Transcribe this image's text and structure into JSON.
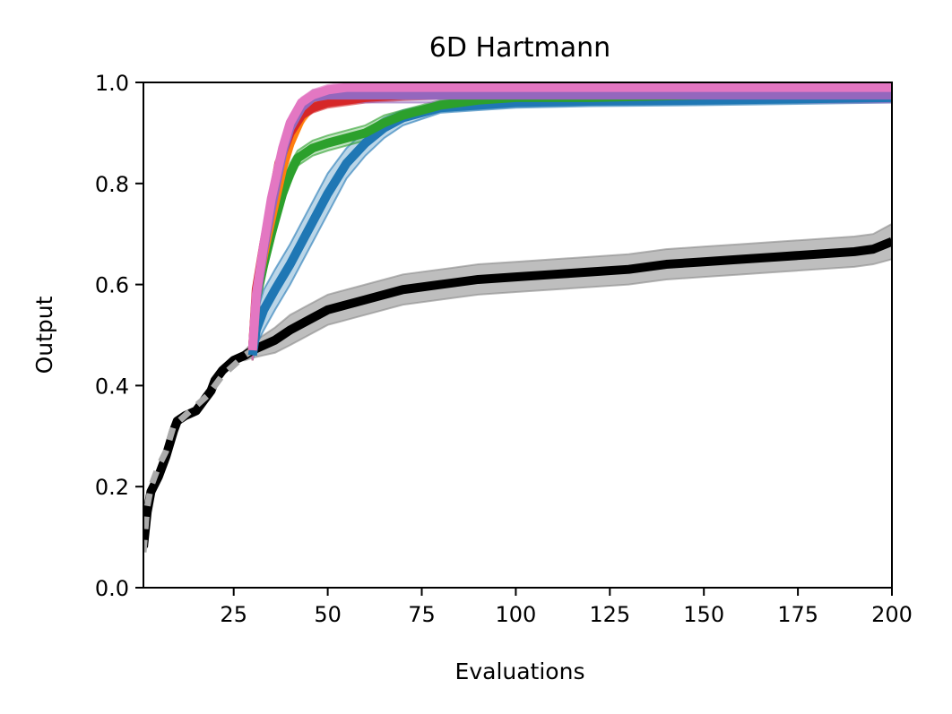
{
  "chart_data": {
    "type": "line",
    "title": "6D Hartmann",
    "xlabel": "Evaluations",
    "ylabel": "Output",
    "xlim": [
      1,
      200
    ],
    "ylim": [
      0.0,
      1.0
    ],
    "x_ticks": [
      25,
      50,
      75,
      100,
      125,
      150,
      175,
      200
    ],
    "x_tick_labels": [
      "25",
      "50",
      "75",
      "100",
      "125",
      "150",
      "175",
      "200"
    ],
    "y_ticks": [
      0.0,
      0.2,
      0.4,
      0.6,
      0.8,
      1.0
    ],
    "y_tick_labels": [
      "0.0",
      "0.2",
      "0.4",
      "0.6",
      "0.8",
      "1.0"
    ],
    "grid": false,
    "legend": "none",
    "series": [
      {
        "color": "#000000",
        "band_color": "#888888",
        "style": "solid",
        "x": [
          1,
          2,
          3,
          5,
          7,
          9,
          10,
          12,
          15,
          17,
          19,
          20,
          22,
          25,
          28,
          30,
          33,
          36,
          40,
          45,
          50,
          55,
          60,
          70,
          80,
          90,
          100,
          110,
          120,
          130,
          140,
          150,
          160,
          170,
          180,
          190,
          195,
          200
        ],
        "y": [
          0.08,
          0.15,
          0.19,
          0.22,
          0.26,
          0.31,
          0.33,
          0.34,
          0.35,
          0.37,
          0.39,
          0.41,
          0.43,
          0.45,
          0.46,
          0.47,
          0.48,
          0.49,
          0.51,
          0.53,
          0.55,
          0.56,
          0.57,
          0.59,
          0.6,
          0.61,
          0.615,
          0.62,
          0.625,
          0.63,
          0.64,
          0.645,
          0.65,
          0.655,
          0.66,
          0.665,
          0.67,
          0.685
        ],
        "band": [
          0,
          0,
          0,
          0,
          0,
          0,
          0,
          0,
          0,
          0,
          0,
          0,
          0,
          0,
          0.01,
          0.015,
          0.02,
          0.025,
          0.03,
          0.03,
          0.03,
          0.03,
          0.03,
          0.03,
          0.03,
          0.03,
          0.03,
          0.03,
          0.03,
          0.03,
          0.03,
          0.03,
          0.03,
          0.03,
          0.03,
          0.03,
          0.03,
          0.035
        ]
      },
      {
        "color": "#aaaaaa",
        "style": "dashed",
        "x": [
          1,
          2,
          3,
          5,
          7,
          9,
          12,
          15,
          18,
          20,
          22,
          25,
          28,
          30
        ],
        "y": [
          0.07,
          0.16,
          0.2,
          0.24,
          0.27,
          0.32,
          0.34,
          0.36,
          0.38,
          0.4,
          0.42,
          0.44,
          0.46,
          0.47
        ]
      },
      {
        "color": "#1f77b4",
        "style": "solid",
        "x": [
          30,
          31,
          33,
          36,
          40,
          45,
          50,
          55,
          60,
          65,
          70,
          80,
          90,
          100,
          120,
          150,
          200
        ],
        "y": [
          0.46,
          0.51,
          0.55,
          0.59,
          0.64,
          0.71,
          0.78,
          0.84,
          0.88,
          0.91,
          0.93,
          0.95,
          0.955,
          0.96,
          0.963,
          0.965,
          0.97
        ],
        "band": [
          0.01,
          0.03,
          0.04,
          0.04,
          0.04,
          0.04,
          0.04,
          0.03,
          0.025,
          0.02,
          0.015,
          0.01,
          0.01,
          0.01,
          0.01,
          0.01,
          0.01
        ]
      },
      {
        "color": "#2ca02c",
        "style": "solid",
        "x": [
          30,
          31,
          33,
          35,
          38,
          40,
          42,
          44,
          46,
          50,
          55,
          60,
          65,
          70,
          75,
          80,
          90,
          100,
          120,
          150,
          200
        ],
        "y": [
          0.47,
          0.57,
          0.64,
          0.7,
          0.78,
          0.82,
          0.85,
          0.86,
          0.87,
          0.88,
          0.89,
          0.9,
          0.92,
          0.935,
          0.945,
          0.955,
          0.965,
          0.97,
          0.97,
          0.975,
          0.98
        ],
        "band": [
          0.02,
          0.03,
          0.03,
          0.03,
          0.02,
          0.02,
          0.015,
          0.015,
          0.015,
          0.015,
          0.015,
          0.015,
          0.015,
          0.01,
          0.01,
          0.01,
          0.01,
          0.01,
          0.01,
          0.01,
          0.01
        ]
      },
      {
        "color": "#ff7f0e",
        "style": "solid",
        "x": [
          30,
          31,
          33,
          35,
          38,
          40,
          43,
          46,
          50,
          55,
          60,
          70,
          80,
          100,
          150,
          200
        ],
        "y": [
          0.47,
          0.58,
          0.66,
          0.73,
          0.83,
          0.88,
          0.93,
          0.955,
          0.965,
          0.97,
          0.975,
          0.978,
          0.98,
          0.98,
          0.98,
          0.98
        ],
        "band": [
          0.02,
          0.03,
          0.03,
          0.03,
          0.02,
          0.02,
          0.015,
          0.01,
          0.01,
          0.01,
          0.01,
          0.01,
          0.01,
          0.01,
          0.01,
          0.01
        ]
      },
      {
        "color": "#d62728",
        "style": "solid",
        "x": [
          30,
          31,
          33,
          35,
          37,
          40,
          43,
          46,
          50,
          55,
          60,
          70,
          80,
          100,
          150,
          200
        ],
        "y": [
          0.47,
          0.59,
          0.68,
          0.76,
          0.84,
          0.9,
          0.935,
          0.95,
          0.96,
          0.965,
          0.97,
          0.975,
          0.978,
          0.98,
          0.98,
          0.98
        ],
        "band": [
          0.02,
          0.03,
          0.03,
          0.03,
          0.02,
          0.015,
          0.01,
          0.01,
          0.01,
          0.01,
          0.01,
          0.01,
          0.01,
          0.01,
          0.01,
          0.01
        ]
      },
      {
        "color": "#9467bd",
        "style": "solid",
        "x": [
          30,
          31,
          33,
          35,
          38,
          40,
          43,
          46,
          50,
          55,
          60,
          70,
          80,
          100,
          150,
          200
        ],
        "y": [
          0.47,
          0.57,
          0.67,
          0.75,
          0.86,
          0.91,
          0.95,
          0.97,
          0.975,
          0.975,
          0.975,
          0.975,
          0.975,
          0.975,
          0.975,
          0.975
        ],
        "band": [
          0.02,
          0.03,
          0.03,
          0.03,
          0.02,
          0.02,
          0.015,
          0.015,
          0.015,
          0.015,
          0.015,
          0.015,
          0.015,
          0.015,
          0.015,
          0.015
        ]
      },
      {
        "color": "#e377c2",
        "style": "solid",
        "x": [
          30,
          31,
          33,
          35,
          38,
          40,
          43,
          46,
          50,
          55,
          60,
          70,
          80,
          100,
          150,
          200
        ],
        "y": [
          0.47,
          0.58,
          0.68,
          0.77,
          0.87,
          0.92,
          0.96,
          0.975,
          0.985,
          0.99,
          0.99,
          0.99,
          0.99,
          0.99,
          0.99,
          0.99
        ],
        "band": [
          0.02,
          0.03,
          0.03,
          0.03,
          0.02,
          0.015,
          0.01,
          0.01,
          0.01,
          0.01,
          0.01,
          0.01,
          0.01,
          0.01,
          0.01,
          0.01
        ]
      }
    ]
  }
}
